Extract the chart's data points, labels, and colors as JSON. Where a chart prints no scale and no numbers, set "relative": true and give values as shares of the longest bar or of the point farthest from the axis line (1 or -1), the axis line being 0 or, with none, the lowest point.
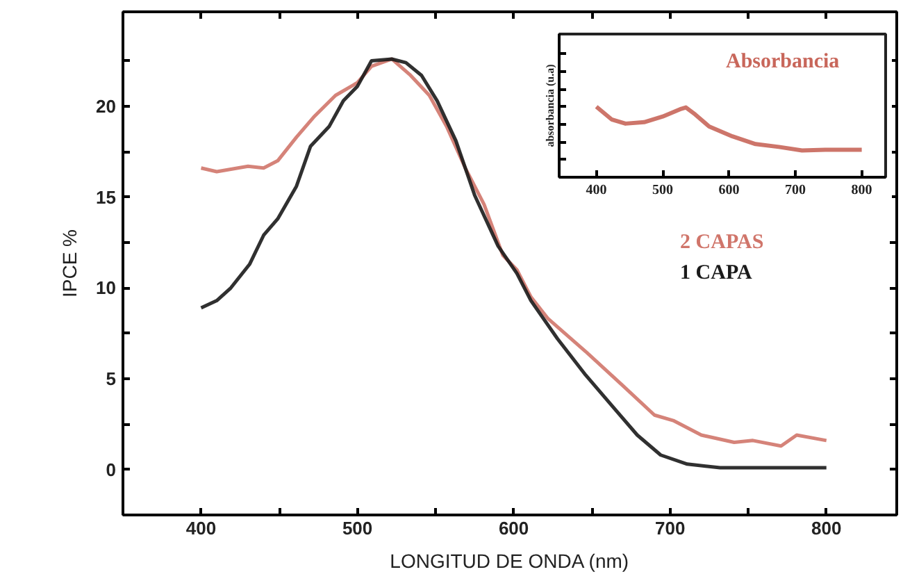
{
  "chart_data": [
    {
      "type": "line",
      "xlabel": "LONGITUD DE ONDA (nm)",
      "ylabel": "IPCE %",
      "legend": "right",
      "xlim": [
        350,
        845
      ],
      "ylim": [
        -2.5,
        25.2
      ],
      "xticks": [
        400,
        {
          "value": 450,
          "label": null
        },
        500,
        {
          "value": 550,
          "label": null
        },
        600,
        {
          "value": 650,
          "label": null
        },
        700,
        {
          "value": 750,
          "label": null
        },
        800
      ],
      "yticks": [
        0,
        {
          "value": 2.5,
          "label": null
        },
        5,
        {
          "value": 7.5,
          "label": null
        },
        10,
        {
          "value": 12.5,
          "label": null
        },
        15,
        {
          "value": 17.5,
          "label": null
        },
        20,
        {
          "value": 22.5,
          "label": null
        }
      ],
      "series": [
        {
          "name": "2 CAPAS",
          "color": "#d0756a",
          "x": [
            400,
            410,
            430,
            440,
            449,
            461,
            472,
            486,
            500,
            509,
            522,
            534,
            546,
            557,
            569,
            581,
            593,
            602,
            611,
            622,
            646,
            670,
            690,
            702,
            720,
            741,
            753,
            771,
            781,
            800
          ],
          "values": [
            16.6,
            16.4,
            16.7,
            16.6,
            17.0,
            18.3,
            19.4,
            20.6,
            21.3,
            22.2,
            22.6,
            21.7,
            20.6,
            18.9,
            16.6,
            14.6,
            11.8,
            11.0,
            9.5,
            8.3,
            6.5,
            4.6,
            3.0,
            2.7,
            1.9,
            1.5,
            1.6,
            1.3,
            1.9,
            1.6
          ]
        },
        {
          "name": "1 CAPA",
          "color": "#1a1a1a",
          "x": [
            400,
            410,
            419,
            431,
            440,
            449,
            461,
            470,
            482,
            491,
            500,
            509,
            522,
            531,
            541,
            551,
            563,
            575,
            590,
            602,
            611,
            628,
            646,
            664,
            679,
            694,
            711,
            732,
            800
          ],
          "values": [
            8.9,
            9.3,
            10.0,
            11.3,
            12.9,
            13.8,
            15.6,
            17.8,
            18.9,
            20.3,
            21.1,
            22.5,
            22.6,
            22.4,
            21.7,
            20.3,
            18.1,
            15.1,
            12.3,
            10.8,
            9.3,
            7.2,
            5.2,
            3.4,
            1.9,
            0.8,
            0.3,
            0.1,
            0.1
          ]
        }
      ]
    },
    {
      "type": "line",
      "relative": true,
      "ylabel": "absorbancia (u.a)",
      "xlim": [
        344,
        836
      ],
      "xticks": [
        400,
        500,
        600,
        700,
        800
      ],
      "tick_labels": "x",
      "series": [
        {
          "name": "Absorbancia",
          "color": "#c8665a",
          "x": [
            400,
            423,
            444,
            472,
            500,
            528,
            535,
            549,
            570,
            605,
            640,
            675,
            710,
            745,
            800
          ],
          "values": [
            1,
            0.82,
            0.76,
            0.78,
            0.86,
            0.97,
            0.99,
            0.89,
            0.72,
            0.58,
            0.47,
            0.43,
            0.38,
            0.39,
            0.39
          ]
        }
      ]
    }
  ]
}
